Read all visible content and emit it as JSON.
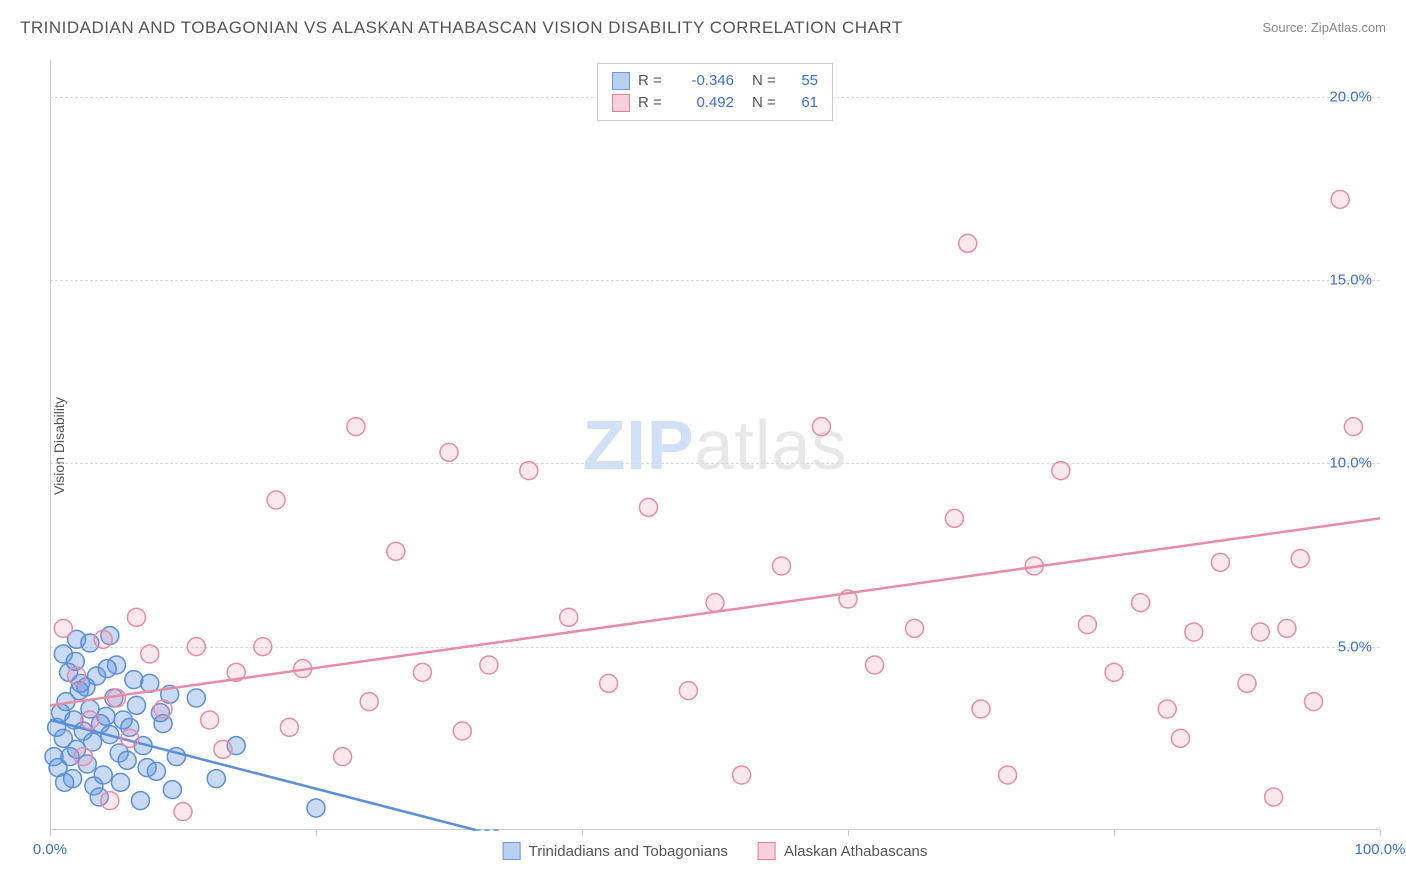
{
  "title": "TRINIDADIAN AND TOBAGONIAN VS ALASKAN ATHABASCAN VISION DISABILITY CORRELATION CHART",
  "source_label": "Source: ZipAtlas.com",
  "y_axis_label": "Vision Disability",
  "watermark": {
    "zip": "ZIP",
    "atlas": "atlas"
  },
  "chart": {
    "type": "scatter",
    "xlim": [
      0,
      100
    ],
    "ylim": [
      0,
      21
    ],
    "x_ticks": [
      0,
      20,
      40,
      60,
      80,
      100
    ],
    "x_tick_labels": {
      "0": "0.0%",
      "100": "100.0%"
    },
    "y_ticks": [
      5,
      10,
      15,
      20
    ],
    "y_tick_labels": {
      "5": "5.0%",
      "10": "10.0%",
      "15": "15.0%",
      "20": "20.0%"
    },
    "grid_color": "#d8d8d8",
    "background_color": "#ffffff",
    "marker_radius": 9,
    "marker_stroke_width": 1.5,
    "trend_line_width": 2.5,
    "series": [
      {
        "name": "Trinidadians and Tobagonians",
        "fill_color": "rgba(99,150,226,0.35)",
        "stroke_color": "#5b8fd9",
        "swatch_fill": "#b8d0f0",
        "swatch_border": "#6a9bde",
        "r_value": "-0.346",
        "n_value": "55",
        "trend": {
          "x1": 0,
          "y1": 3.0,
          "x2": 32,
          "y2": 0,
          "dash_extend_x2": 32
        },
        "points": [
          [
            0.5,
            2.8
          ],
          [
            0.8,
            3.2
          ],
          [
            1.0,
            2.5
          ],
          [
            1.2,
            3.5
          ],
          [
            1.5,
            2.0
          ],
          [
            1.8,
            3.0
          ],
          [
            2.0,
            2.2
          ],
          [
            2.2,
            3.8
          ],
          [
            2.5,
            2.7
          ],
          [
            2.8,
            1.8
          ],
          [
            3.0,
            3.3
          ],
          [
            3.2,
            2.4
          ],
          [
            3.5,
            4.2
          ],
          [
            3.8,
            2.9
          ],
          [
            4.0,
            1.5
          ],
          [
            4.2,
            3.1
          ],
          [
            4.5,
            2.6
          ],
          [
            4.8,
            3.6
          ],
          [
            5.0,
            4.5
          ],
          [
            5.2,
            2.1
          ],
          [
            5.5,
            3.0
          ],
          [
            5.8,
            1.9
          ],
          [
            6.0,
            2.8
          ],
          [
            6.5,
            3.4
          ],
          [
            7.0,
            2.3
          ],
          [
            7.5,
            4.0
          ],
          [
            8.0,
            1.6
          ],
          [
            8.5,
            2.9
          ],
          [
            9.0,
            3.7
          ],
          [
            9.5,
            2.0
          ],
          [
            1.0,
            4.8
          ],
          [
            2.0,
            5.2
          ],
          [
            0.3,
            2.0
          ],
          [
            0.6,
            1.7
          ],
          [
            1.4,
            4.3
          ],
          [
            1.7,
            1.4
          ],
          [
            2.3,
            4.0
          ],
          [
            3.3,
            1.2
          ],
          [
            4.3,
            4.4
          ],
          [
            5.3,
            1.3
          ],
          [
            6.3,
            4.1
          ],
          [
            7.3,
            1.7
          ],
          [
            8.3,
            3.2
          ],
          [
            1.1,
            1.3
          ],
          [
            1.9,
            4.6
          ],
          [
            2.7,
            3.9
          ],
          [
            3.7,
            0.9
          ],
          [
            11.0,
            3.6
          ],
          [
            12.5,
            1.4
          ],
          [
            14.0,
            2.3
          ],
          [
            4.5,
            5.3
          ],
          [
            6.8,
            0.8
          ],
          [
            9.2,
            1.1
          ],
          [
            20.0,
            0.6
          ],
          [
            3.0,
            5.1
          ]
        ]
      },
      {
        "name": "Alaskan Athabascans",
        "fill_color": "rgba(235,140,165,0.20)",
        "stroke_color": "#e88ca5",
        "swatch_fill": "#f6d1da",
        "swatch_border": "#e67d9a",
        "r_value": "0.492",
        "n_value": "61",
        "trend": {
          "x1": 0,
          "y1": 3.4,
          "x2": 100,
          "y2": 8.5
        },
        "points": [
          [
            1.0,
            5.5
          ],
          [
            2.0,
            4.2
          ],
          [
            3.0,
            3.0
          ],
          [
            4.0,
            5.2
          ],
          [
            5.0,
            3.6
          ],
          [
            6.0,
            2.5
          ],
          [
            7.5,
            4.8
          ],
          [
            8.5,
            3.3
          ],
          [
            10.0,
            0.5
          ],
          [
            11.0,
            5.0
          ],
          [
            12.0,
            3.0
          ],
          [
            14.0,
            4.3
          ],
          [
            16.0,
            5.0
          ],
          [
            17.0,
            9.0
          ],
          [
            18.0,
            2.8
          ],
          [
            19.0,
            4.4
          ],
          [
            22.0,
            2.0
          ],
          [
            23.0,
            11.0
          ],
          [
            26.0,
            7.6
          ],
          [
            28.0,
            4.3
          ],
          [
            30.0,
            10.3
          ],
          [
            33.0,
            4.5
          ],
          [
            36.0,
            9.8
          ],
          [
            39.0,
            5.8
          ],
          [
            42.0,
            4.0
          ],
          [
            45.0,
            8.8
          ],
          [
            48.0,
            3.8
          ],
          [
            50.0,
            6.2
          ],
          [
            52.0,
            1.5
          ],
          [
            55.0,
            7.2
          ],
          [
            58.0,
            11.0
          ],
          [
            60.0,
            6.3
          ],
          [
            62.0,
            4.5
          ],
          [
            65.0,
            5.5
          ],
          [
            68.0,
            8.5
          ],
          [
            69.0,
            16.0
          ],
          [
            70.0,
            3.3
          ],
          [
            72.0,
            1.5
          ],
          [
            74.0,
            7.2
          ],
          [
            76.0,
            9.8
          ],
          [
            78.0,
            5.6
          ],
          [
            80.0,
            4.3
          ],
          [
            82.0,
            6.2
          ],
          [
            84.0,
            3.3
          ],
          [
            85.0,
            2.5
          ],
          [
            86.0,
            5.4
          ],
          [
            88.0,
            7.3
          ],
          [
            90.0,
            4.0
          ],
          [
            91.0,
            5.4
          ],
          [
            92.0,
            0.9
          ],
          [
            93.0,
            5.5
          ],
          [
            94.0,
            7.4
          ],
          [
            95.0,
            3.5
          ],
          [
            97.0,
            17.2
          ],
          [
            98.0,
            11.0
          ],
          [
            2.5,
            2.0
          ],
          [
            4.5,
            0.8
          ],
          [
            6.5,
            5.8
          ],
          [
            13.0,
            2.2
          ],
          [
            24.0,
            3.5
          ],
          [
            31.0,
            2.7
          ]
        ]
      }
    ]
  },
  "colors": {
    "title_text": "#555555",
    "source_text": "#888888",
    "tick_text": "#3b6fd6",
    "axis_line": "#cccccc"
  },
  "fonts": {
    "title_size": 17,
    "tick_size": 15,
    "axis_label_size": 14,
    "legend_size": 15,
    "watermark_size": 70
  }
}
